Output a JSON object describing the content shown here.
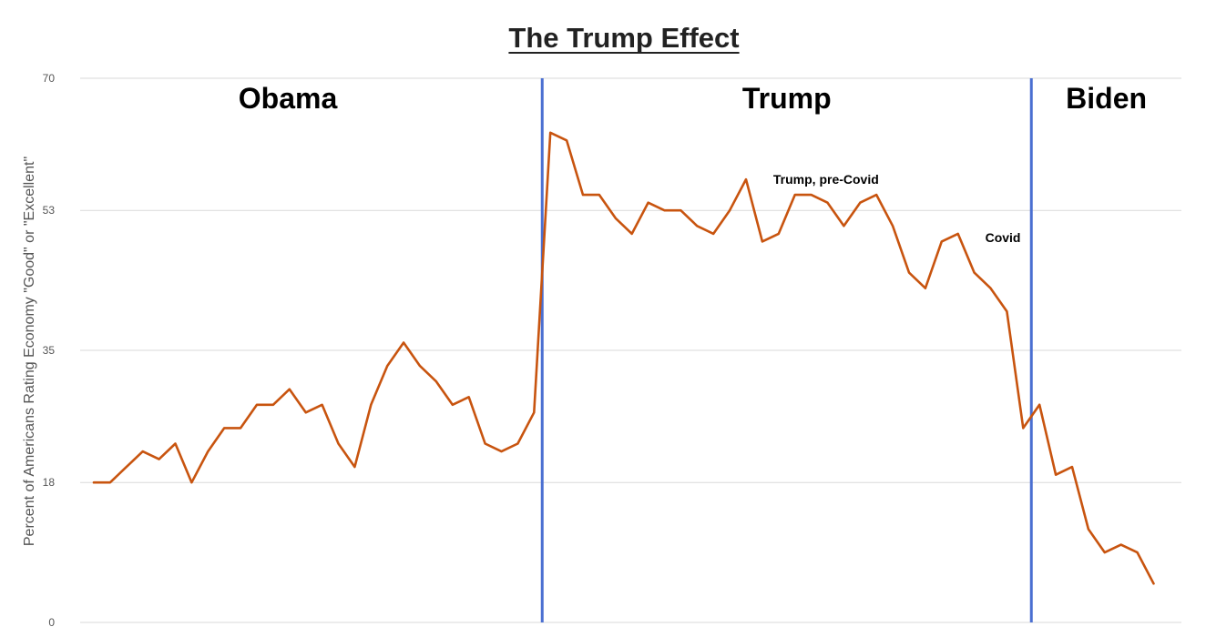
{
  "chart_data": {
    "type": "line",
    "title": "The Trump Effect",
    "xlabel": "",
    "ylabel": "Percent of Americans Rating Economy \"Good\" or \"Excellent\"",
    "ylim": [
      0,
      70
    ],
    "yticks": [
      0,
      18,
      35,
      53,
      70
    ],
    "grid": true,
    "colors": {
      "line": "#c8540f",
      "divider": "#4a6fd1",
      "grid": "#d9d9d9"
    },
    "series": [
      {
        "values": [
          18,
          18,
          20,
          22,
          21,
          23,
          18,
          22,
          25,
          25,
          28,
          28,
          30,
          27,
          28,
          23,
          20,
          28,
          33,
          36,
          33,
          31,
          28,
          29,
          23,
          22,
          23,
          27,
          63,
          62,
          55,
          55,
          52,
          50,
          54,
          53,
          53,
          51,
          50,
          53,
          57,
          49,
          50,
          55,
          55,
          54,
          51,
          54,
          55,
          51,
          45,
          43,
          49,
          50,
          45,
          43,
          40,
          25,
          28,
          19,
          20,
          12,
          9,
          10,
          9,
          5
        ]
      }
    ],
    "eras": [
      {
        "label": "Obama",
        "start_index": 0
      },
      {
        "label": "Trump",
        "start_index": 27.5
      },
      {
        "label": "Biden",
        "start_index": 57.5
      }
    ],
    "annotations": [
      {
        "text": "Trump, pre-Covid",
        "index": 41,
        "value": 57
      },
      {
        "text": "Covid",
        "index": 54,
        "value": 49.5
      }
    ]
  }
}
